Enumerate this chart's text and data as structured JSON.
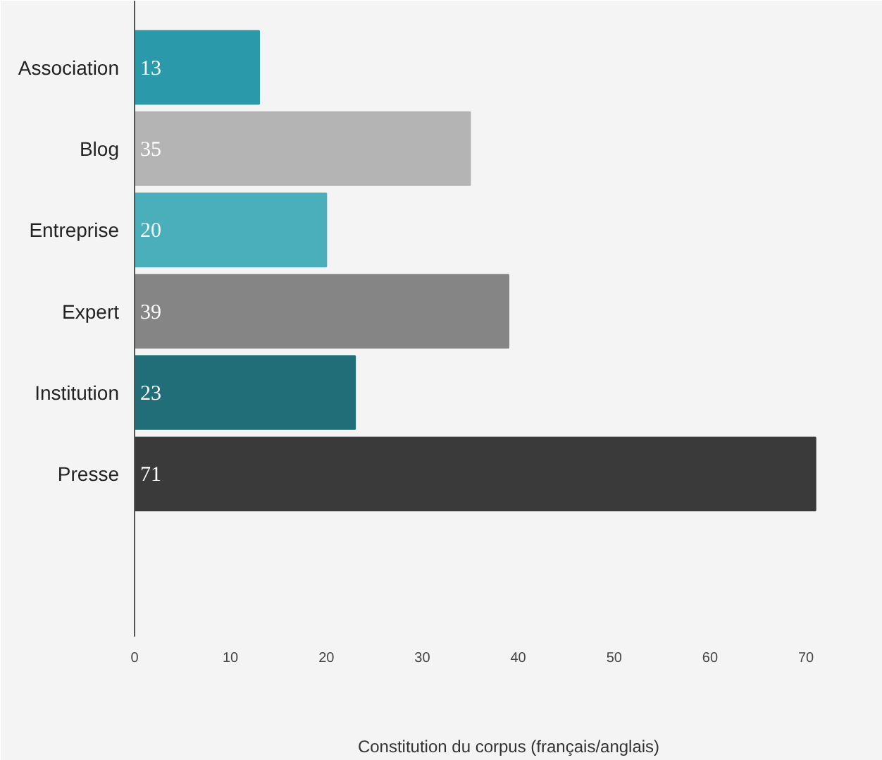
{
  "chart_data": {
    "type": "bar",
    "orientation": "horizontal",
    "xlabel": "Constitution du corpus (français/anglais)",
    "categories": [
      "Association",
      "Blog",
      "Entreprise",
      "Expert",
      "Institution",
      "Presse"
    ],
    "values": [
      13,
      35,
      20,
      39,
      23,
      71
    ],
    "colors": [
      "#2a9aab",
      "#b4b4b4",
      "#4aaebb",
      "#858585",
      "#226e78",
      "#3a3a3a"
    ],
    "xlim": [
      0,
      78
    ],
    "xticks": [
      0,
      10,
      20,
      30,
      40,
      50,
      60,
      70
    ],
    "data_labels": true
  }
}
